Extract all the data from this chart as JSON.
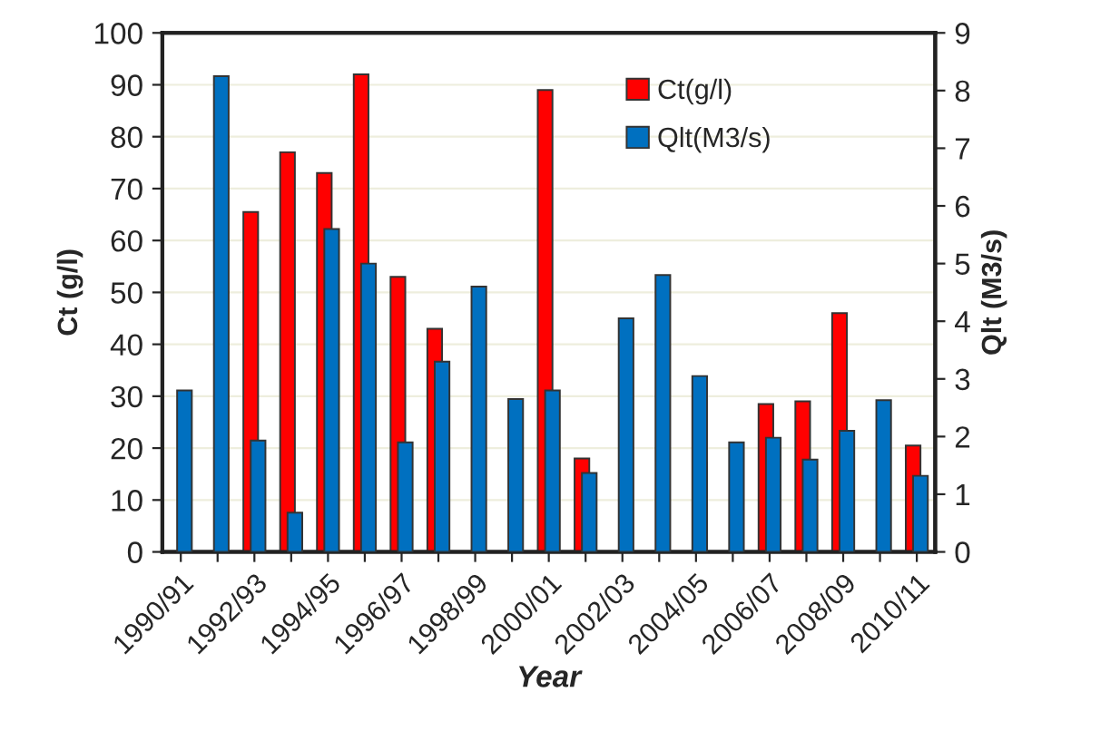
{
  "chart_data": {
    "type": "bar",
    "xlabel": "Year",
    "ylabel": "Ct (g/l)",
    "y2label": "Qlt (M3/s)",
    "categories": [
      "1990/91",
      null,
      "1992/93",
      null,
      "1994/95",
      null,
      "1996/97",
      null,
      "1998/99",
      null,
      "2000/01",
      null,
      "2002/03",
      null,
      "2004/05",
      null,
      "2006/07",
      null,
      "2008/09",
      null,
      "2010/11"
    ],
    "series": [
      {
        "name": "Ct(g/l)",
        "color": "#ff0000",
        "values": [
          null,
          null,
          65.5,
          77,
          73,
          92,
          53,
          43,
          null,
          null,
          89,
          18,
          null,
          null,
          null,
          null,
          28.5,
          29,
          46,
          null,
          20.5
        ]
      },
      {
        "name": "Qlt(M3/s)",
        "color": "#0070c0",
        "axis": "y2",
        "values": [
          2.8,
          8.25,
          1.93,
          0.68,
          5.6,
          5.0,
          1.9,
          3.3,
          4.6,
          2.65,
          2.8,
          1.37,
          4.05,
          4.8,
          3.05,
          1.9,
          1.98,
          1.6,
          2.1,
          2.63,
          1.32
        ]
      }
    ],
    "ylim": [
      0,
      100
    ],
    "yticks": [
      0,
      10,
      20,
      30,
      40,
      50,
      60,
      70,
      80,
      90,
      100
    ],
    "y2lim": [
      0,
      9
    ],
    "y2ticks": [
      0,
      1,
      2,
      3,
      4,
      5,
      6,
      7,
      8,
      9
    ],
    "grid": true,
    "legend": "top right"
  }
}
